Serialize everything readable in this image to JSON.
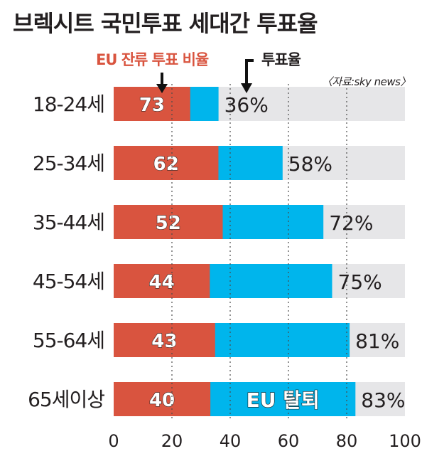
{
  "title": "브렉시트 국민투표 세대간 투표율",
  "legend": {
    "remain_label": "EU 잔류 투표 비율",
    "turnout_label": "투표율"
  },
  "source": "〈자료:sky news〉",
  "colors": {
    "remain": "#d9543f",
    "turnout": "#00b5ec",
    "background_bar": "#e6e6e8",
    "text": "#231f20"
  },
  "chart_data": {
    "type": "bar",
    "orientation": "horizontal",
    "categories": [
      "18-24세",
      "25-34세",
      "35-44세",
      "45-54세",
      "55-64세",
      "65세이상"
    ],
    "series": [
      {
        "name": "EU 잔류 투표 비율",
        "values": [
          73,
          62,
          52,
          44,
          43,
          40
        ]
      },
      {
        "name": "투표율",
        "values": [
          36,
          58,
          72,
          75,
          81,
          83
        ]
      }
    ],
    "value_labels": [
      "36%",
      "58%",
      "72%",
      "75%",
      "81%",
      "83%"
    ],
    "inner_label": "EU 탈퇴",
    "xlim": [
      0,
      100
    ],
    "xticks": [
      0,
      20,
      40,
      60,
      80,
      100
    ],
    "grid": "dotted vertical"
  }
}
